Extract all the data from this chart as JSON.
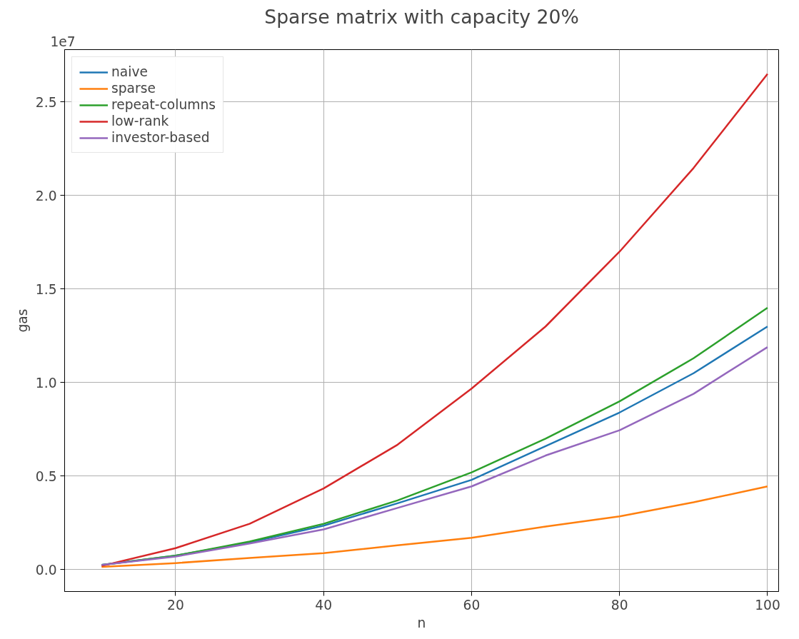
{
  "chart_data": {
    "type": "line",
    "title": "Sparse matrix with capacity 20%",
    "xlabel": "n",
    "ylabel": "gas",
    "annotations": [
      "1e7"
    ],
    "x": [
      10,
      20,
      30,
      40,
      50,
      60,
      70,
      80,
      90,
      100
    ],
    "series": [
      {
        "name": "naive",
        "color": "#1f77b4",
        "values": [
          0.025,
          0.075,
          0.145,
          0.235,
          0.355,
          0.48,
          0.66,
          0.84,
          1.05,
          1.3
        ]
      },
      {
        "name": "sparse",
        "color": "#ff7f0e",
        "values": [
          0.015,
          0.035,
          0.062,
          0.088,
          0.13,
          0.17,
          0.23,
          0.285,
          0.36,
          0.445
        ]
      },
      {
        "name": "repeat-columns",
        "color": "#2ca02c",
        "values": [
          0.025,
          0.075,
          0.15,
          0.245,
          0.37,
          0.52,
          0.7,
          0.9,
          1.13,
          1.4
        ]
      },
      {
        "name": "low-rank",
        "color": "#d62728",
        "values": [
          0.02,
          0.115,
          0.245,
          0.434,
          0.668,
          0.968,
          1.3,
          1.7,
          2.147,
          2.65
        ]
      },
      {
        "name": "investor-based",
        "color": "#9467bd",
        "values": [
          0.025,
          0.07,
          0.14,
          0.215,
          0.33,
          0.445,
          0.61,
          0.745,
          0.94,
          1.19
        ]
      }
    ],
    "xlim": [
      5,
      101.5
    ],
    "ylim": [
      -0.117,
      2.78
    ],
    "xticks": [
      20,
      40,
      60,
      80,
      100
    ],
    "yticks": [
      {
        "value": 0,
        "label": "0.0"
      },
      0.5,
      {
        "value": 1,
        "label": "1.0"
      },
      1.5,
      {
        "value": 2,
        "label": "2.0"
      },
      2.5
    ],
    "grid": true,
    "legend": "top left",
    "line_style": "solid",
    "marker": "none"
  }
}
